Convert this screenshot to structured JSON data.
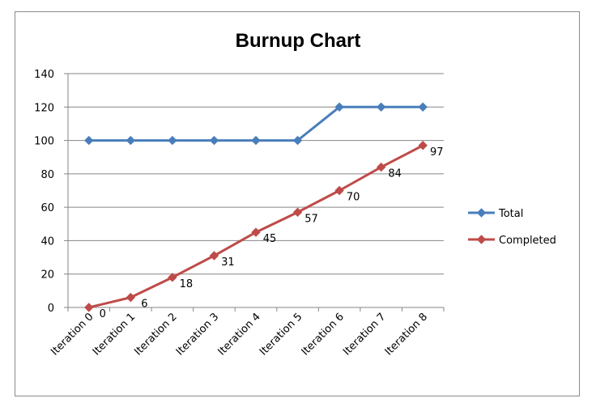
{
  "chart_data": {
    "type": "line",
    "title": "Burnup Chart",
    "categories": [
      "Iteration 0",
      "Iteration 1",
      "Iteration 2",
      "Iteration 3",
      "Iteration 4",
      "Iteration 5",
      "Iteration 6",
      "Iteration 7",
      "Iteration 8"
    ],
    "ylim": [
      0,
      140
    ],
    "yticks": [
      "0",
      "20",
      "40",
      "60",
      "80",
      "100",
      "120",
      "140"
    ],
    "grid": true,
    "legend_position": "right",
    "series": [
      {
        "name": "Total",
        "color": "#4a7ebb",
        "values": [
          100,
          100,
          100,
          100,
          100,
          100,
          120,
          120,
          120
        ],
        "data_labels": false
      },
      {
        "name": "Completed",
        "color": "#be4b48",
        "values": [
          0,
          6,
          18,
          31,
          45,
          57,
          70,
          84,
          97
        ],
        "data_labels": true
      }
    ]
  }
}
